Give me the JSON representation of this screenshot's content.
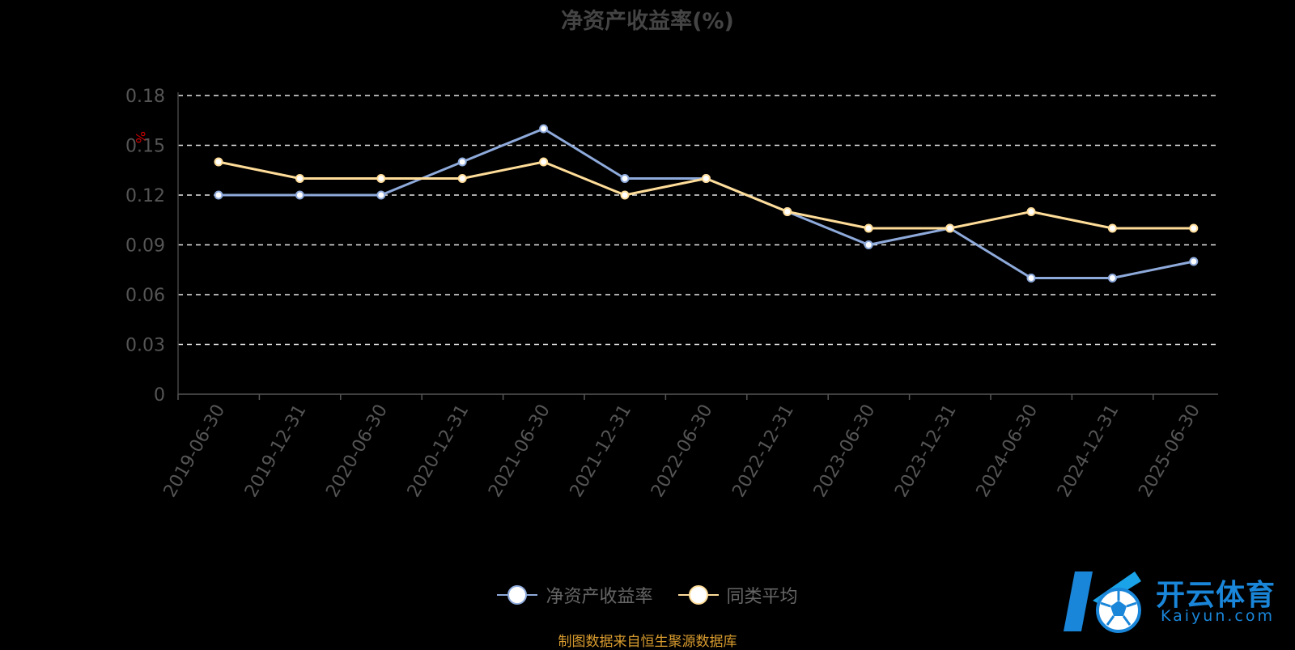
{
  "chart_data": {
    "type": "line",
    "title": "净资产收益率(%)",
    "ylabel": "%",
    "categories": [
      "2019-06-30",
      "2019-12-31",
      "2020-06-30",
      "2020-12-31",
      "2021-06-30",
      "2021-12-31",
      "2022-06-30",
      "2022-12-31",
      "2023-06-30",
      "2023-12-31",
      "2024-06-30",
      "2024-12-31",
      "2025-06-30"
    ],
    "ylim": [
      0,
      0.18
    ],
    "yticks": [
      "0",
      "0.03",
      "0.06",
      "0.09",
      "0.12",
      "0.15",
      "0.18"
    ],
    "grid": true,
    "legend_position": "bottom",
    "series": [
      {
        "name": "净资产收益率",
        "color": "#8eaadb",
        "values": [
          0.12,
          0.12,
          0.12,
          0.14,
          0.16,
          0.13,
          0.13,
          0.11,
          0.09,
          0.1,
          0.07,
          0.07,
          0.08
        ]
      },
      {
        "name": "同类平均",
        "color": "#ffdd99",
        "values": [
          0.14,
          0.13,
          0.13,
          0.13,
          0.14,
          0.12,
          0.13,
          0.11,
          0.1,
          0.1,
          0.11,
          0.1,
          0.1
        ]
      }
    ]
  },
  "source_text": "制图数据来自恒生聚源数据库",
  "logo": {
    "cn": "开云体育",
    "en": "Kaiyun.com"
  },
  "colors": {
    "background": "#000000",
    "grid": "#ffffff",
    "axis_text": "#555555",
    "unit_label": "#cc0000",
    "source": "#d89b2e",
    "logo": "#1a86d9"
  }
}
